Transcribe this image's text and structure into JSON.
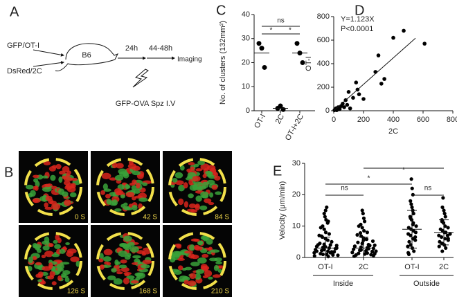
{
  "panel_labels": [
    "A",
    "B",
    "C",
    "D",
    "E"
  ],
  "diagram": {
    "inputs": [
      "GFP/OT-I",
      "DsRed/2C"
    ],
    "host": "B6",
    "steps": [
      "24h",
      "44-48h"
    ],
    "outcome": "Imaging",
    "injection": "GFP-OVA Spz I.V"
  },
  "micrographs": {
    "timestamps": [
      "0 S",
      "42 S",
      "84 S",
      "126 S",
      "168 S",
      "210 S"
    ]
  },
  "chart_data": [
    {
      "type": "dot",
      "ylabel": "No. of clusters (132mm²)",
      "categories": [
        "OT-I",
        "2C",
        "OT-I+2C"
      ],
      "points": [
        [
          28,
          26,
          18
        ],
        [
          1,
          2,
          0.5
        ],
        [
          28,
          24,
          20
        ]
      ],
      "means": [
        24,
        1,
        24
      ],
      "color": "#000000",
      "ylim": [
        0,
        40
      ],
      "yticks": [
        0,
        10,
        20,
        30,
        40
      ],
      "annotations": [
        "ns",
        "*",
        "*"
      ]
    },
    {
      "type": "scatter",
      "xlabel": "2C",
      "ylabel": "OT-I",
      "color": "#000000",
      "x": [
        5,
        10,
        15,
        20,
        30,
        40,
        50,
        60,
        70,
        80,
        90,
        100,
        110,
        130,
        150,
        160,
        170,
        200,
        280,
        300,
        320,
        340,
        400,
        470,
        610
      ],
      "y": [
        5,
        10,
        20,
        5,
        30,
        15,
        40,
        60,
        30,
        90,
        50,
        160,
        20,
        110,
        240,
        180,
        140,
        100,
        330,
        470,
        230,
        270,
        620,
        680,
        570
      ],
      "fit": {
        "label": "Y=1.123X",
        "slope": 1.123
      },
      "p_value_label": "P<0.0001",
      "xlim": [
        0,
        800
      ],
      "xticks": [
        0,
        200,
        400,
        600,
        800
      ],
      "ylim": [
        0,
        800
      ],
      "yticks": [
        0,
        200,
        400,
        600,
        800
      ]
    },
    {
      "type": "dot",
      "ylabel": "Velocity (μm/min)",
      "categories": [
        "OT-I",
        "2C",
        "OT-I",
        "2C"
      ],
      "groups": [
        "Inside",
        "Outside"
      ],
      "points": [
        [
          0.5,
          0.8,
          1,
          1.2,
          1.5,
          1.8,
          2,
          2.2,
          2.5,
          2.8,
          3,
          3.2,
          3.5,
          3.8,
          4,
          4.2,
          4.5,
          5,
          5.5,
          6,
          6.5,
          7,
          7.5,
          8,
          9,
          10,
          11,
          12,
          13,
          14,
          16,
          0.3,
          1,
          2,
          3,
          1.5,
          2.5,
          4,
          0.7,
          1.8,
          3.4,
          6.8,
          9.5,
          11.5,
          15
        ],
        [
          0.4,
          0.9,
          1.1,
          1.3,
          1.6,
          1.9,
          2.1,
          2.3,
          2.6,
          2.9,
          3.1,
          3.3,
          3.6,
          3.9,
          4.1,
          4.4,
          4.8,
          5.2,
          5.8,
          6.2,
          6.8,
          7.2,
          8,
          8.5,
          9.5,
          10.5,
          11.5,
          12.5,
          14,
          15,
          0.6,
          1.4,
          2.4,
          3.5,
          1.2,
          2.8,
          4.6,
          0.8,
          2,
          3.8,
          5.5,
          7.8,
          10
        ],
        [
          1,
          2,
          3,
          4,
          5,
          5.5,
          6,
          7,
          7.5,
          8,
          8.5,
          9,
          9.5,
          10,
          11,
          12,
          13,
          14,
          15,
          16,
          17,
          18,
          20,
          22,
          25,
          3.5,
          6.5,
          10.5,
          12.5,
          1.5
        ],
        [
          2,
          3,
          4,
          4.5,
          5,
          5.5,
          6,
          6.5,
          7,
          7.5,
          8,
          8.5,
          9,
          9.5,
          10,
          11,
          12,
          13,
          14,
          15,
          19,
          3.5,
          7,
          8,
          11.5,
          16,
          6
        ]
      ],
      "means": [
        3,
        3,
        9,
        8
      ],
      "sd": [
        3.5,
        3.5,
        6,
        4
      ],
      "color": "#000000",
      "ylim": [
        0,
        30
      ],
      "yticks": [
        0,
        10,
        20,
        30
      ],
      "annotations": [
        "ns",
        "ns",
        "*",
        "*"
      ]
    }
  ]
}
